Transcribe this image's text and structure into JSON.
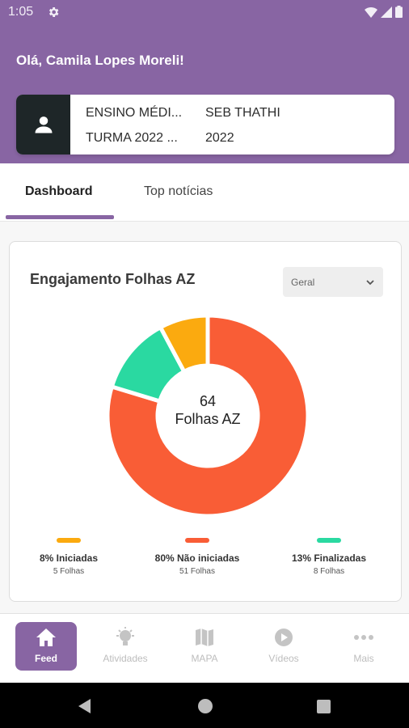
{
  "status_bar": {
    "time": "1:05"
  },
  "header": {
    "greeting": "Olá, Camila Lopes Moreli!"
  },
  "profile": {
    "row1_col1": "ENSINO MÉDI...",
    "row1_col2": "SEB THATHI",
    "row2_col1": "TURMA 2022 ...",
    "row2_col2": "2022"
  },
  "tabs": [
    {
      "label": "Dashboard",
      "active": true
    },
    {
      "label": "Top notícias",
      "active": false
    }
  ],
  "engagement_card": {
    "title": "Engajamento Folhas AZ",
    "dropdown_value": "Geral",
    "center_value": "64",
    "center_label": "Folhas AZ"
  },
  "chart_data": {
    "type": "pie",
    "title": "Engajamento Folhas AZ",
    "categories": [
      "Iniciadas",
      "Não iniciadas",
      "Finalizadas"
    ],
    "values": [
      5,
      51,
      8
    ],
    "percent": [
      8,
      80,
      13
    ],
    "colors": [
      "#fbaa0f",
      "#f95d36",
      "#2ad9a1"
    ],
    "total": 64,
    "legend": [
      {
        "label": "8% Iniciadas",
        "sub": "5 Folhas",
        "color": "#fbaa0f"
      },
      {
        "label": "80% Não iniciadas",
        "sub": "51 Folhas",
        "color": "#f95d36"
      },
      {
        "label": "13% Finalizadas",
        "sub": "8 Folhas",
        "color": "#2ad9a1"
      }
    ]
  },
  "bottom_nav": [
    {
      "label": "Feed",
      "icon": "home-icon",
      "active": true
    },
    {
      "label": "Atividades",
      "icon": "lightbulb-icon",
      "active": false
    },
    {
      "label": "MAPA",
      "icon": "map-icon",
      "active": false
    },
    {
      "label": "Vídeos",
      "icon": "play-icon",
      "active": false
    },
    {
      "label": "Mais",
      "icon": "more-icon",
      "active": false
    }
  ],
  "colors": {
    "primary": "#8865a3",
    "iniciadas": "#fbaa0f",
    "nao_iniciadas": "#f95d36",
    "finalizadas": "#2ad9a1"
  }
}
